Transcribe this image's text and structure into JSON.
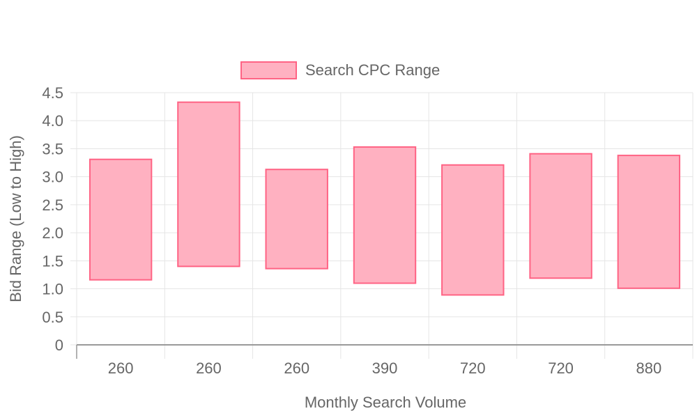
{
  "chart_data": {
    "type": "bar",
    "subtype": "floating-range",
    "categories": [
      "260",
      "260",
      "260",
      "390",
      "720",
      "720",
      "880"
    ],
    "series": [
      {
        "name": "Search CPC Range",
        "ranges": [
          [
            1.16,
            3.31
          ],
          [
            1.4,
            4.33
          ],
          [
            1.36,
            3.13
          ],
          [
            1.1,
            3.53
          ],
          [
            0.89,
            3.21
          ],
          [
            1.19,
            3.41
          ],
          [
            1.01,
            3.38
          ]
        ],
        "fill": "#ffb1c1",
        "stroke": "#ff6384"
      }
    ],
    "xlabel": "Monthly Search Volume",
    "ylabel": "Bid Range (Low to High)",
    "ylim": [
      0,
      4.5
    ],
    "yticks": [
      "0",
      "0.5",
      "1.0",
      "1.5",
      "2.0",
      "2.5",
      "3.0",
      "3.5",
      "4.0",
      "4.5"
    ],
    "grid": true,
    "legend_position": "top"
  },
  "colors": {
    "grid": "#e5e5e5",
    "axis": "#999999",
    "text": "#666666"
  }
}
